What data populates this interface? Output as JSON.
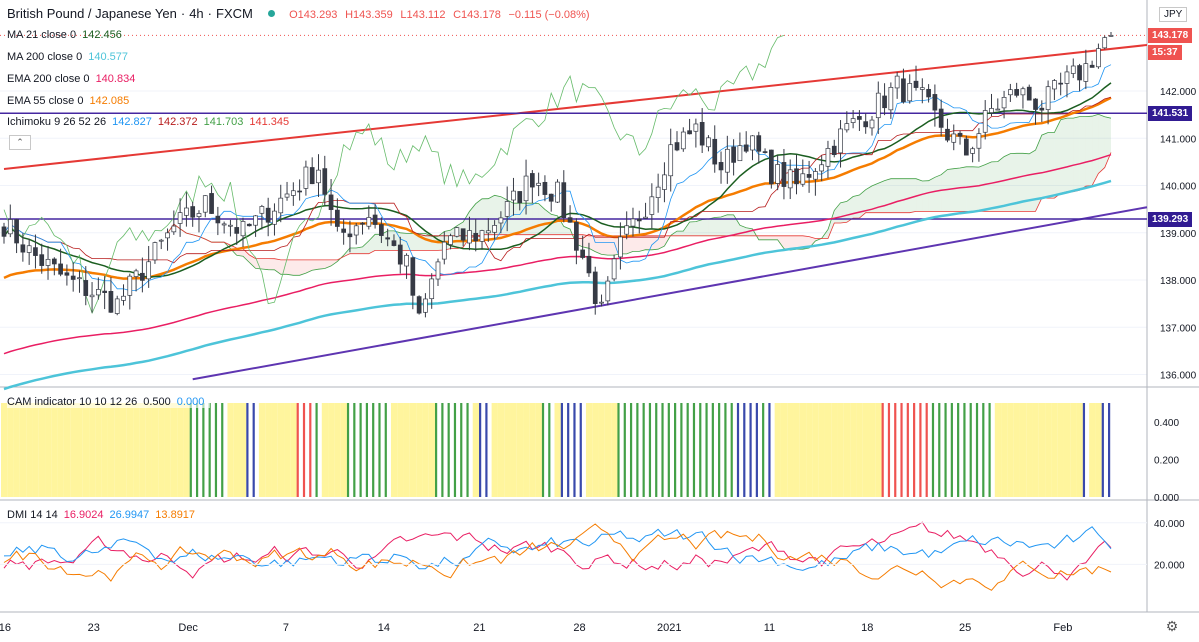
{
  "header": {
    "symbol": "British Pound / Japanese Yen",
    "interval": "4h",
    "source": "FXCM",
    "sep": "·",
    "ohlc": {
      "o": "O143.293",
      "h": "H143.359",
      "l": "L143.112",
      "c": "C143.178",
      "chg": "−0.115 (−0.08%)"
    },
    "currency": "JPY"
  },
  "indicators": [
    {
      "label": "MA 21 close 0",
      "value": "142.456",
      "color": "#1b5e20"
    },
    {
      "label": "MA 200 close 0",
      "value": "140.577",
      "color": "#4dc4d9"
    },
    {
      "label": "EMA 200 close 0",
      "value": "140.834",
      "color": "#e91e63"
    },
    {
      "label": "EMA 55 close 0",
      "value": "142.085",
      "color": "#f57c00"
    }
  ],
  "ichimoku": {
    "label": "Ichimoku 9 26 52 26",
    "values": [
      "142.827",
      "142.372",
      "141.703",
      "141.345"
    ],
    "colors": [
      "#2196f3",
      "#b71c1c",
      "#43a047",
      "#e53935"
    ]
  },
  "cam": {
    "label": "CAM indicator 10 10 12 26",
    "values": [
      "0.500",
      "0.000"
    ],
    "colors": [
      "#131722",
      "#2196f3"
    ]
  },
  "dmi": {
    "label": "DMI 14 14",
    "values": [
      "16.9024",
      "26.9947",
      "13.8917"
    ],
    "colors": [
      "#e91e63",
      "#2196f3",
      "#f57c00"
    ]
  },
  "price_tags": [
    {
      "text": "143.178",
      "value": 143.178,
      "color": "#ef5350"
    },
    {
      "text": "15:37",
      "value": 142.96,
      "color": "#ef5350"
    },
    {
      "text": "141.531",
      "value": 141.531,
      "color": "#311b92"
    },
    {
      "text": "139.293",
      "value": 139.293,
      "color": "#311b92"
    }
  ],
  "collapse_icon": "chevron-up-icon",
  "settings_icon": "gear-icon",
  "chart_data": {
    "type": "candlestick",
    "x_tick_labels": [
      "16",
      "23",
      "Dec",
      "7",
      "14",
      "21",
      "28",
      "2021",
      "11",
      "18",
      "25",
      "Feb"
    ],
    "price_axis": {
      "ticks": [
        "136.000",
        "137.000",
        "138.000",
        "139.000",
        "140.000",
        "141.000",
        "142.000"
      ],
      "range": [
        135.8,
        143.8
      ]
    },
    "cam_axis": {
      "ticks": [
        "0.000",
        "0.200",
        "0.400"
      ],
      "range": [
        0,
        0.5
      ]
    },
    "dmi_axis": {
      "ticks": [
        "20.000",
        "40.000"
      ],
      "range": [
        0,
        50
      ]
    },
    "horizontal_lines": [
      141.531,
      139.293
    ],
    "channel_upper": [
      [
        0,
        140.35
      ],
      [
        180,
        142.95
      ]
    ],
    "channel_lower": [
      [
        30,
        135.9
      ],
      [
        180,
        139.5
      ]
    ],
    "waypoints": [
      [
        0,
        139.2
      ],
      [
        4,
        138.6
      ],
      [
        10,
        138.0
      ],
      [
        18,
        137.5
      ],
      [
        22,
        138.2
      ],
      [
        27,
        139.1
      ],
      [
        32,
        139.6
      ],
      [
        38,
        139.0
      ],
      [
        44,
        139.7
      ],
      [
        50,
        140.4
      ],
      [
        53,
        138.9
      ],
      [
        58,
        139.4
      ],
      [
        64,
        138.3
      ],
      [
        66,
        137.1
      ],
      [
        70,
        138.8
      ],
      [
        76,
        139.0
      ],
      [
        80,
        139.5
      ],
      [
        84,
        140.2
      ],
      [
        88,
        139.8
      ],
      [
        92,
        138.5
      ],
      [
        95,
        137.3
      ],
      [
        98,
        138.7
      ],
      [
        102,
        139.6
      ],
      [
        106,
        140.8
      ],
      [
        110,
        141.2
      ],
      [
        114,
        140.4
      ],
      [
        118,
        141.0
      ],
      [
        122,
        140.3
      ],
      [
        126,
        140.0
      ],
      [
        130,
        140.6
      ],
      [
        134,
        141.2
      ],
      [
        138,
        141.6
      ],
      [
        142,
        142.1
      ],
      [
        146,
        141.8
      ],
      [
        150,
        141.1
      ],
      [
        153,
        140.7
      ],
      [
        157,
        141.6
      ],
      [
        161,
        142.0
      ],
      [
        165,
        141.7
      ],
      [
        169,
        142.2
      ],
      [
        172,
        142.5
      ],
      [
        176,
        143.3
      ]
    ],
    "candle_count": 177,
    "last_close": 143.178
  }
}
